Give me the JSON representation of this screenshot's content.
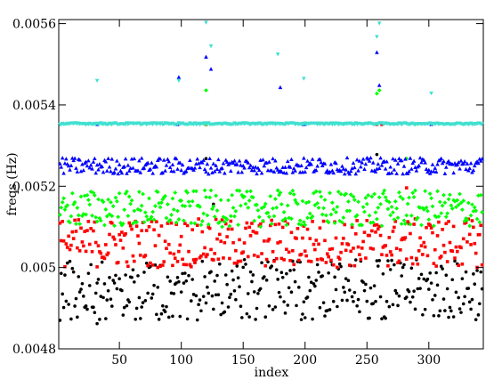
{
  "chart_data": {
    "type": "scatter",
    "title": "",
    "xlabel": "index",
    "ylabel": "freqs (Hz)",
    "xlim": [
      1,
      344
    ],
    "ylim": [
      0.0048,
      0.00561
    ],
    "x_ticks": [
      {
        "value": 50,
        "label": "50"
      },
      {
        "value": 100,
        "label": "100"
      },
      {
        "value": 150,
        "label": "150"
      },
      {
        "value": 200,
        "label": "200"
      },
      {
        "value": 250,
        "label": "250"
      },
      {
        "value": 300,
        "label": "300"
      }
    ],
    "y_ticks": [
      {
        "value": 0.0048,
        "label": "0.0048"
      },
      {
        "value": 0.005,
        "label": "0.005"
      },
      {
        "value": 0.0052,
        "label": "0.0052"
      },
      {
        "value": 0.0054,
        "label": "0.0054"
      },
      {
        "value": 0.0056,
        "label": "0.0056"
      }
    ],
    "grid": false,
    "legend": "none",
    "series": [
      {
        "color": "#000000",
        "marker": "circle",
        "band": [
          0.00487,
          0.00502
        ],
        "points": [
          [
            32,
            0.004862
          ],
          [
            120,
            0.005268
          ],
          [
            126,
            0.005156
          ],
          [
            258,
            0.005278
          ]
        ]
      },
      {
        "color": "#ff0000",
        "marker": "square",
        "band": [
          0.005,
          0.00512
        ],
        "points": [
          [
            120,
            0.005352
          ],
          [
            258,
            0.005352
          ],
          [
            262,
            0.005352
          ],
          [
            282,
            0.005196
          ]
        ]
      },
      {
        "color": "#00ff00",
        "marker": "diamond",
        "band": [
          0.0051,
          0.00519
        ],
        "points": [
          [
            120,
            0.005436
          ],
          [
            120,
            0.005352
          ],
          [
            258,
            0.005428
          ],
          [
            260,
            0.005436
          ],
          [
            282,
            0.005268
          ]
        ]
      },
      {
        "color": "#0000ff",
        "marker": "triangle-up",
        "band": [
          0.00523,
          0.00527
        ],
        "points": [
          [
            32,
            0.005352
          ],
          [
            97,
            0.005352
          ],
          [
            98,
            0.005468
          ],
          [
            120,
            0.005518
          ],
          [
            124,
            0.005488
          ],
          [
            180,
            0.005443
          ],
          [
            199,
            0.005352
          ],
          [
            258,
            0.005529
          ],
          [
            260,
            0.005448
          ],
          [
            302,
            0.005352
          ]
        ]
      },
      {
        "color": "#40e0d0",
        "marker": "triangle-down",
        "band": [
          0.005352,
          0.005356
        ],
        "points": [
          [
            32,
            0.00546
          ],
          [
            98,
            0.00546
          ],
          [
            120,
            0.005603
          ],
          [
            124,
            0.005545
          ],
          [
            178,
            0.005525
          ],
          [
            199,
            0.005465
          ],
          [
            258,
            0.005568
          ],
          [
            260,
            0.005601
          ],
          [
            302,
            0.005429
          ]
        ]
      }
    ]
  }
}
